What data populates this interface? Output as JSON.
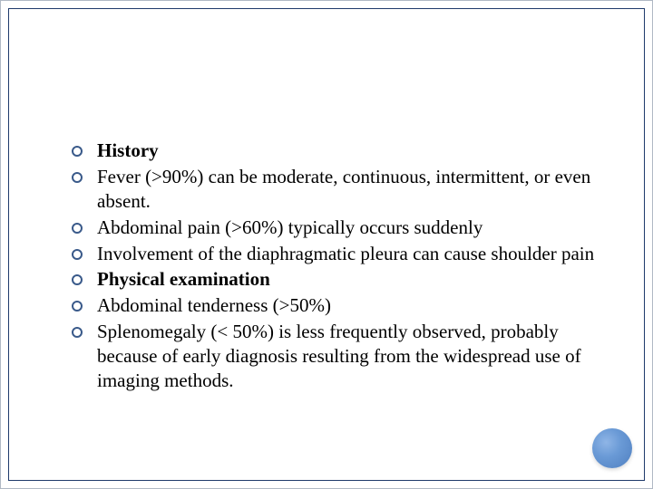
{
  "slide": {
    "border_color": "#1f3a6b",
    "background_color": "#ffffff",
    "bullet_ring_color": "#3a5a8a",
    "text_color": "#000000",
    "font_family": "Times New Roman",
    "font_size_pt": 16,
    "accent_circle_gradient": [
      "#8fb5e6",
      "#6a9ad6",
      "#4f7fc0"
    ],
    "bullets": [
      {
        "text": "History",
        "bold": true
      },
      {
        "text": "Fever (>90%) can be moderate, continuous, intermittent, or even absent.",
        "bold": false
      },
      {
        "text": "Abdominal pain (>60%) typically occurs suddenly",
        "bold": false
      },
      {
        "text": "Involvement of the diaphragmatic pleura can cause shoulder pain",
        "bold": false
      },
      {
        "text": "Physical examination",
        "bold": true
      },
      {
        "text": "Abdominal tenderness (>50%)",
        "bold": false
      },
      {
        "text": "Splenomegaly (< 50%) is less frequently observed, probably because of early diagnosis resulting from the widespread use of imaging methods.",
        "bold": false
      }
    ]
  }
}
